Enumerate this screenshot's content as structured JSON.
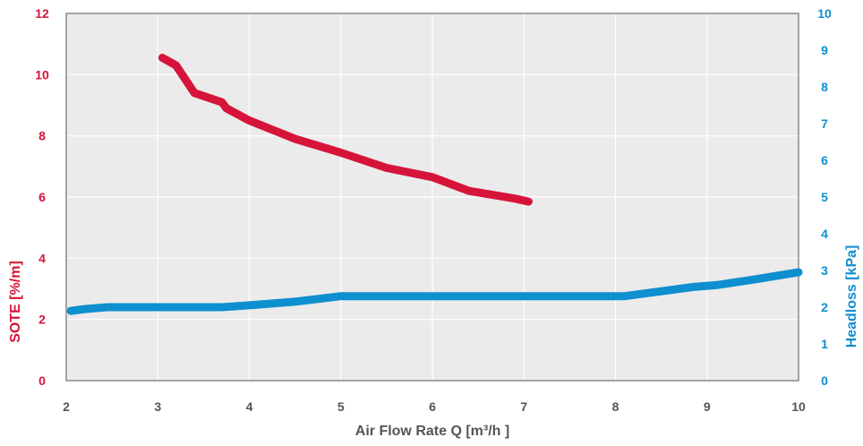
{
  "chart_data": {
    "type": "line",
    "xlabel": "Air Flow Rate Q [m³/h ]",
    "ylabel_left": "SOTE [%/m]",
    "ylabel_right": "Headloss [kPa]",
    "xlim": [
      2,
      10
    ],
    "ylim_left": [
      0,
      12
    ],
    "ylim_right": [
      0,
      10
    ],
    "x_ticks": [
      "2",
      "3",
      "4",
      "5",
      "6",
      "7",
      "8",
      "9",
      "10"
    ],
    "y_left_ticks": [
      "0",
      "2",
      "4",
      "6",
      "8",
      "10",
      "12"
    ],
    "y_right_ticks": [
      "0",
      "1",
      "2",
      "3",
      "4",
      "5",
      "6",
      "7",
      "8",
      "9",
      "10"
    ],
    "grid": true,
    "background": "#ebebeb",
    "series": [
      {
        "axis": "left",
        "color": "#d6143a",
        "x": [
          3.05,
          3.2,
          3.4,
          3.7,
          3.75,
          4.0,
          4.5,
          5.0,
          5.5,
          6.0,
          6.4,
          6.9,
          7.05
        ],
        "y": [
          10.55,
          10.3,
          9.4,
          9.1,
          8.9,
          8.5,
          7.9,
          7.45,
          6.95,
          6.65,
          6.2,
          5.95,
          5.85
        ]
      },
      {
        "axis": "right",
        "color": "#0e8fcf",
        "x": [
          2.05,
          2.2,
          2.45,
          3.0,
          3.7,
          4.0,
          4.5,
          5.0,
          6.0,
          7.0,
          8.1,
          8.85,
          9.1,
          9.5,
          10.0
        ],
        "y": [
          1.9,
          1.95,
          2.0,
          2.0,
          2.0,
          2.05,
          2.15,
          2.3,
          2.3,
          2.3,
          2.3,
          2.55,
          2.6,
          2.75,
          2.95
        ]
      }
    ]
  }
}
